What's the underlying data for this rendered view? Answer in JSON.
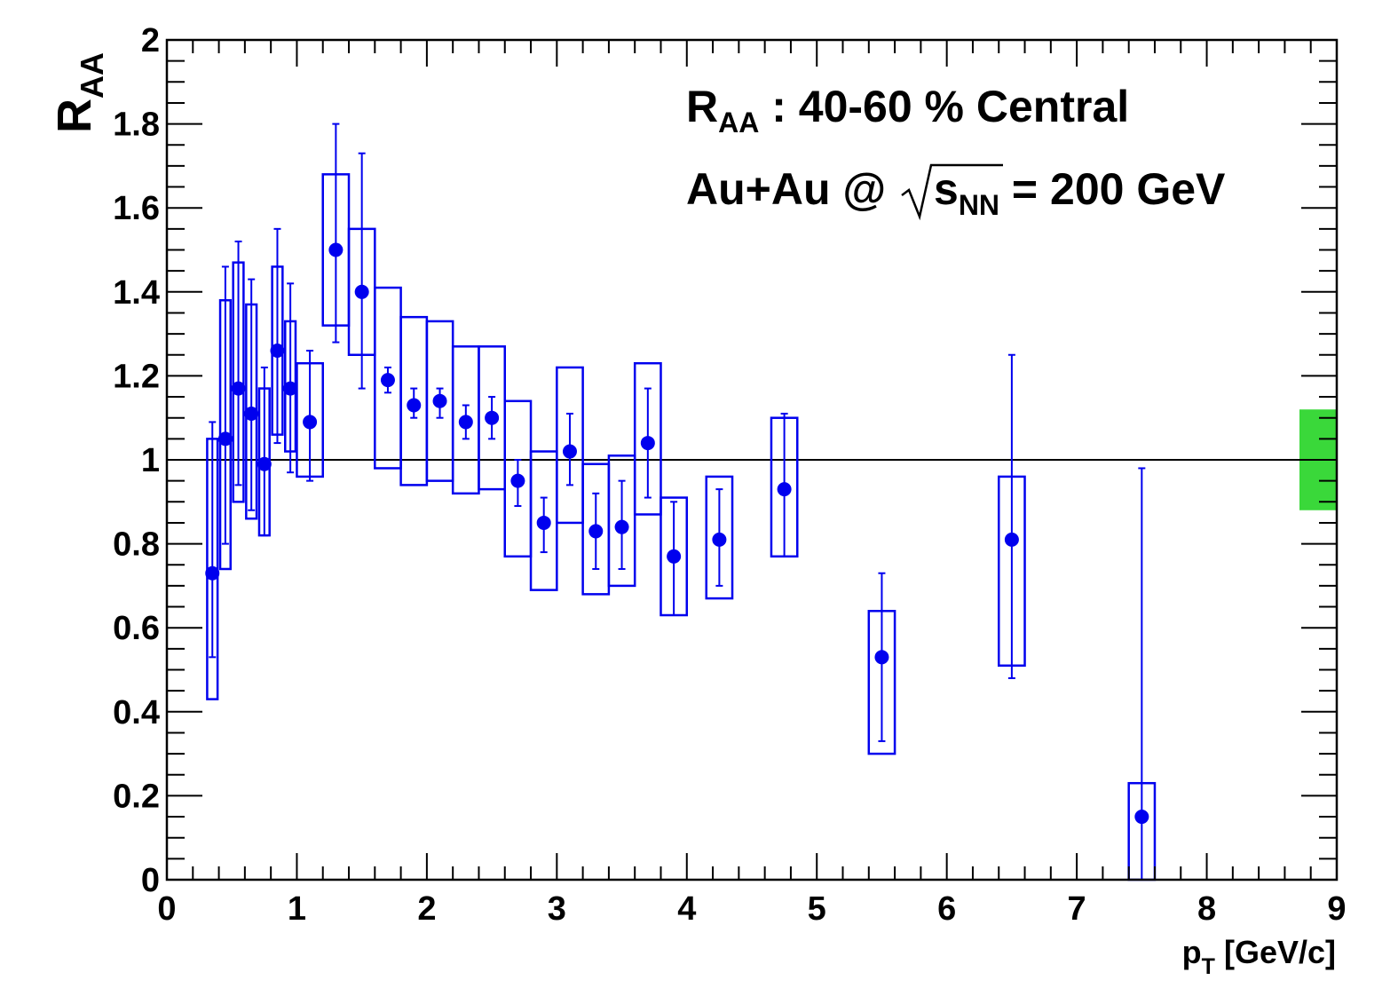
{
  "chart_data": {
    "type": "scatter",
    "xlabel": {
      "main": "p",
      "sub": "T",
      "rest": " [GeV/c]"
    },
    "ylabel": {
      "main": "R",
      "sub": "AA"
    },
    "xlim": [
      0,
      9
    ],
    "ylim": [
      0,
      2
    ],
    "x_ticks": [
      "0",
      "1",
      "2",
      "3",
      "4",
      "5",
      "6",
      "7",
      "8",
      "9"
    ],
    "y_ticks": [
      "0",
      "0.2",
      "0.4",
      "0.6",
      "0.8",
      "1",
      "1.2",
      "1.4",
      "1.6",
      "1.8",
      "2"
    ],
    "reference_line": 1.0,
    "normalization_band": {
      "low": 0.88,
      "high": 1.12,
      "color": "#3ad83a"
    },
    "series_color": "#0000ee",
    "annotations": {
      "line1": {
        "main": "R",
        "sub": "AA",
        "rest": " : 40-60 % Central"
      },
      "line2": {
        "pre": "Au+Au @",
        "main": "s",
        "sub": "NN",
        "rest": " = 200 GeV"
      }
    },
    "points": [
      {
        "x": 0.35,
        "y": 0.73,
        "stat_lo": 0.53,
        "stat_hi": 1.09,
        "sys_lo": 0.43,
        "sys_hi": 1.05,
        "bin_w": 0.08
      },
      {
        "x": 0.45,
        "y": 1.05,
        "stat_lo": 0.8,
        "stat_hi": 1.46,
        "sys_lo": 0.74,
        "sys_hi": 1.38,
        "bin_w": 0.08
      },
      {
        "x": 0.55,
        "y": 1.17,
        "stat_lo": 0.94,
        "stat_hi": 1.52,
        "sys_lo": 0.9,
        "sys_hi": 1.47,
        "bin_w": 0.08
      },
      {
        "x": 0.65,
        "y": 1.11,
        "stat_lo": 0.88,
        "stat_hi": 1.43,
        "sys_lo": 0.86,
        "sys_hi": 1.37,
        "bin_w": 0.08
      },
      {
        "x": 0.75,
        "y": 0.99,
        "stat_lo": 0.82,
        "stat_hi": 1.22,
        "sys_lo": 0.82,
        "sys_hi": 1.17,
        "bin_w": 0.08
      },
      {
        "x": 0.85,
        "y": 1.26,
        "stat_lo": 1.04,
        "stat_hi": 1.55,
        "sys_lo": 1.06,
        "sys_hi": 1.46,
        "bin_w": 0.08
      },
      {
        "x": 0.95,
        "y": 1.17,
        "stat_lo": 0.97,
        "stat_hi": 1.42,
        "sys_lo": 1.02,
        "sys_hi": 1.33,
        "bin_w": 0.08
      },
      {
        "x": 1.1,
        "y": 1.09,
        "stat_lo": 0.95,
        "stat_hi": 1.26,
        "sys_lo": 0.96,
        "sys_hi": 1.23,
        "bin_w": 0.2
      },
      {
        "x": 1.3,
        "y": 1.5,
        "stat_lo": 1.28,
        "stat_hi": 1.8,
        "sys_lo": 1.32,
        "sys_hi": 1.68,
        "bin_w": 0.2
      },
      {
        "x": 1.5,
        "y": 1.4,
        "stat_lo": 1.17,
        "stat_hi": 1.73,
        "sys_lo": 1.25,
        "sys_hi": 1.55,
        "bin_w": 0.2
      },
      {
        "x": 1.7,
        "y": 1.19,
        "stat_lo": 1.16,
        "stat_hi": 1.22,
        "sys_lo": 0.98,
        "sys_hi": 1.41,
        "bin_w": 0.2
      },
      {
        "x": 1.9,
        "y": 1.13,
        "stat_lo": 1.1,
        "stat_hi": 1.17,
        "sys_lo": 0.94,
        "sys_hi": 1.34,
        "bin_w": 0.2
      },
      {
        "x": 2.1,
        "y": 1.14,
        "stat_lo": 1.1,
        "stat_hi": 1.17,
        "sys_lo": 0.95,
        "sys_hi": 1.33,
        "bin_w": 0.2
      },
      {
        "x": 2.3,
        "y": 1.09,
        "stat_lo": 1.05,
        "stat_hi": 1.13,
        "sys_lo": 0.92,
        "sys_hi": 1.27,
        "bin_w": 0.2
      },
      {
        "x": 2.5,
        "y": 1.1,
        "stat_lo": 1.05,
        "stat_hi": 1.15,
        "sys_lo": 0.93,
        "sys_hi": 1.27,
        "bin_w": 0.2
      },
      {
        "x": 2.7,
        "y": 0.95,
        "stat_lo": 0.89,
        "stat_hi": 1.0,
        "sys_lo": 0.77,
        "sys_hi": 1.14,
        "bin_w": 0.2
      },
      {
        "x": 2.9,
        "y": 0.85,
        "stat_lo": 0.78,
        "stat_hi": 0.91,
        "sys_lo": 0.69,
        "sys_hi": 1.02,
        "bin_w": 0.2
      },
      {
        "x": 3.1,
        "y": 1.02,
        "stat_lo": 0.94,
        "stat_hi": 1.11,
        "sys_lo": 0.85,
        "sys_hi": 1.22,
        "bin_w": 0.2
      },
      {
        "x": 3.3,
        "y": 0.83,
        "stat_lo": 0.74,
        "stat_hi": 0.92,
        "sys_lo": 0.68,
        "sys_hi": 0.99,
        "bin_w": 0.2
      },
      {
        "x": 3.5,
        "y": 0.84,
        "stat_lo": 0.74,
        "stat_hi": 0.95,
        "sys_lo": 0.7,
        "sys_hi": 1.01,
        "bin_w": 0.2
      },
      {
        "x": 3.7,
        "y": 1.04,
        "stat_lo": 0.91,
        "stat_hi": 1.17,
        "sys_lo": 0.87,
        "sys_hi": 1.23,
        "bin_w": 0.2
      },
      {
        "x": 3.9,
        "y": 0.77,
        "stat_lo": 0.63,
        "stat_hi": 0.9,
        "sys_lo": 0.63,
        "sys_hi": 0.91,
        "bin_w": 0.2
      },
      {
        "x": 4.25,
        "y": 0.81,
        "stat_lo": 0.7,
        "stat_hi": 0.93,
        "sys_lo": 0.67,
        "sys_hi": 0.96,
        "bin_w": 0.2
      },
      {
        "x": 4.75,
        "y": 0.93,
        "stat_lo": 0.77,
        "stat_hi": 1.11,
        "sys_lo": 0.77,
        "sys_hi": 1.1,
        "bin_w": 0.2
      },
      {
        "x": 5.5,
        "y": 0.53,
        "stat_lo": 0.33,
        "stat_hi": 0.73,
        "sys_lo": 0.3,
        "sys_hi": 0.64,
        "bin_w": 0.2
      },
      {
        "x": 6.5,
        "y": 0.81,
        "stat_lo": 0.48,
        "stat_hi": 1.25,
        "sys_lo": 0.51,
        "sys_hi": 0.96,
        "bin_w": 0.2
      },
      {
        "x": 7.5,
        "y": 0.15,
        "stat_lo": 0.0,
        "stat_hi": 0.98,
        "sys_lo": 0.0,
        "sys_hi": 0.23,
        "bin_w": 0.2
      }
    ]
  }
}
